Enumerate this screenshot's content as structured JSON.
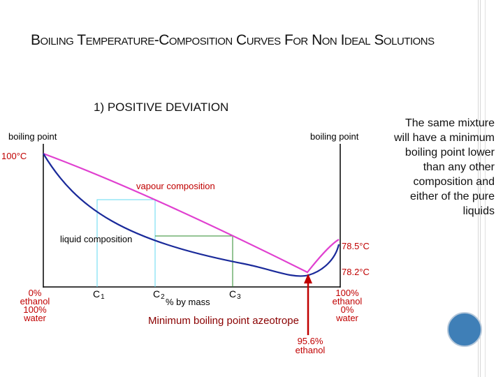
{
  "slide": {
    "title": "Boiling Temperature-Composition Curves For Non Ideal Solutions",
    "subtitle": "1) POSITIVE DEVIATION",
    "side_text": "The same mixture will have a minimum boiling point lower than any other composition and either of the pure liquids",
    "caption": "Minimum boiling point azeotrope",
    "accent_color": "#3f7fb7"
  },
  "diagram": {
    "left_axis_label": "boiling point",
    "right_axis_label": "boiling point",
    "left_top_temp": "100°C",
    "right_temp_upper": "78.5°C",
    "right_temp_lower": "78.2°C",
    "vapour_label": "vapour composition",
    "liquid_label": "liquid composition",
    "x_axis_label": "% by mass",
    "markers": [
      "C1",
      "C2",
      "C3"
    ],
    "left_composition": [
      "0%",
      "ethanol",
      "100%",
      "water"
    ],
    "right_composition": [
      "100%",
      "ethanol",
      "0%",
      "water"
    ],
    "azeotrope_label": [
      "95.6%",
      "ethanol"
    ],
    "vapour_color": "#e040d0",
    "liquid_color": "#1a2a9a",
    "label_color": "#c00000"
  }
}
